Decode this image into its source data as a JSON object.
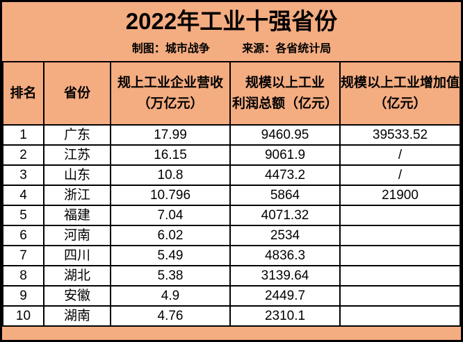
{
  "title": "2022年工业十强省份",
  "subtitle": {
    "maker": "制图：城市战争",
    "source": "来源：各省统计局"
  },
  "colors": {
    "background": "#F4AC81",
    "cell_background": "#FFFFFF",
    "border": "#000000",
    "text": "#000000"
  },
  "table": {
    "columns": [
      {
        "line1": "排名",
        "line2": ""
      },
      {
        "line1": "省份",
        "line2": ""
      },
      {
        "line1": "规上工业企业营收",
        "line2": "（万亿元）"
      },
      {
        "line1": "规模以上工业",
        "line2": "利润总额（亿元）"
      },
      {
        "line1": "规模以上工业增加值",
        "line2": "（亿元）"
      }
    ],
    "rows": [
      {
        "rank": "1",
        "province": "广东",
        "revenue": "17.99",
        "profit": "9460.95",
        "added_value": "39533.52"
      },
      {
        "rank": "2",
        "province": "江苏",
        "revenue": "16.15",
        "profit": "9061.9",
        "added_value": "/"
      },
      {
        "rank": "3",
        "province": "山东",
        "revenue": "10.8",
        "profit": "4473.2",
        "added_value": "/"
      },
      {
        "rank": "4",
        "province": "浙江",
        "revenue": "10.796",
        "profit": "5864",
        "added_value": "21900"
      },
      {
        "rank": "5",
        "province": "福建",
        "revenue": "7.04",
        "profit": "4071.32",
        "added_value": ""
      },
      {
        "rank": "6",
        "province": "河南",
        "revenue": "6.02",
        "profit": "2534",
        "added_value": ""
      },
      {
        "rank": "7",
        "province": "四川",
        "revenue": "5.49",
        "profit": "4836.3",
        "added_value": ""
      },
      {
        "rank": "8",
        "province": "湖北",
        "revenue": "5.38",
        "profit": "3139.64",
        "added_value": ""
      },
      {
        "rank": "9",
        "province": "安徽",
        "revenue": "4.9",
        "profit": "2449.7",
        "added_value": ""
      },
      {
        "rank": "10",
        "province": "湖南",
        "revenue": "4.76",
        "profit": "2310.1",
        "added_value": ""
      }
    ]
  },
  "chart_data": {
    "type": "table",
    "title": "2022年工业十强省份",
    "subtitle": "制图：城市战争　来源：各省统计局",
    "columns": [
      "排名",
      "省份",
      "规上工业企业营收（万亿元）",
      "规模以上工业利润总额（亿元）",
      "规模以上工业增加值（亿元）"
    ],
    "rows": [
      [
        "1",
        "广东",
        17.99,
        9460.95,
        39533.52
      ],
      [
        "2",
        "江苏",
        16.15,
        9061.9,
        "/"
      ],
      [
        "3",
        "山东",
        10.8,
        4473.2,
        "/"
      ],
      [
        "4",
        "浙江",
        10.796,
        5864,
        21900
      ],
      [
        "5",
        "福建",
        7.04,
        4071.32,
        ""
      ],
      [
        "6",
        "河南",
        6.02,
        2534,
        ""
      ],
      [
        "7",
        "四川",
        5.49,
        4836.3,
        ""
      ],
      [
        "8",
        "湖北",
        5.38,
        3139.64,
        ""
      ],
      [
        "9",
        "安徽",
        4.9,
        2449.7,
        ""
      ],
      [
        "10",
        "湖南",
        4.76,
        2310.1,
        ""
      ]
    ]
  }
}
